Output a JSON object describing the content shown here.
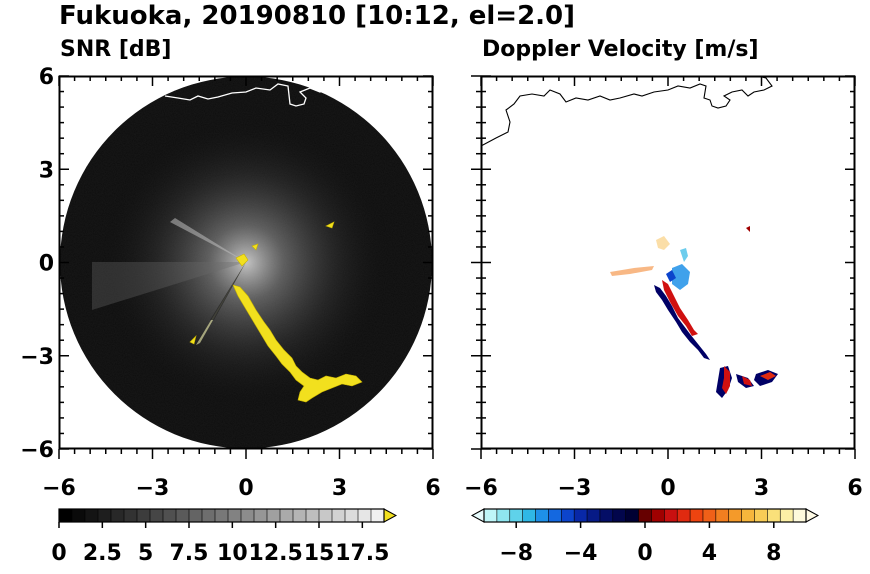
{
  "figure": {
    "title": "Fukuoka, 20190810 [10:12, el=2.0]"
  },
  "chart_data": [
    {
      "type": "heatmap",
      "title": "SNR [dB]",
      "xlabel": "",
      "ylabel": "",
      "xlim": [
        -6,
        6
      ],
      "ylim": [
        -6,
        6
      ],
      "x_ticks": [
        -6,
        -3,
        0,
        3,
        6
      ],
      "x_tick_labels": [
        "−6",
        "−3",
        "0",
        "3",
        "6"
      ],
      "y_ticks": [
        6,
        3,
        0,
        -3,
        -6
      ],
      "y_tick_labels": [
        "6",
        "3",
        "0",
        "−3",
        "−6"
      ],
      "range_ring_radius": 6,
      "background_color": "#000000",
      "echo_color": "#f2e01e",
      "colorbar": {
        "min": 0,
        "max": 18.75,
        "tick_values": [
          0,
          2.5,
          5,
          7.5,
          10,
          12.5,
          15,
          17.5
        ],
        "tick_labels": [
          "0",
          "2.5",
          "5",
          "7.5",
          "10",
          "12.5",
          "15",
          "17.5"
        ],
        "colors": [
          "#000000",
          "#0a0a0a",
          "#141414",
          "#1e1e1e",
          "#282828",
          "#323232",
          "#3c3c3c",
          "#464646",
          "#505050",
          "#5a5a5a",
          "#646464",
          "#6e6e6e",
          "#787878",
          "#828282",
          "#8c8c8c",
          "#969696",
          "#a0a0a0",
          "#aaaaaa",
          "#b4b4b4",
          "#bebebe",
          "#c8c8c8",
          "#d2d2d2",
          "#dcdcdc",
          "#e6e6e6",
          "#f0f0f0"
        ],
        "extend_color": "#f2e01e"
      }
    },
    {
      "type": "heatmap",
      "title": "Doppler Velocity [m/s]",
      "xlabel": "",
      "ylabel": "",
      "xlim": [
        -6,
        6
      ],
      "ylim": [
        -6,
        6
      ],
      "x_ticks": [
        -6,
        -3,
        0,
        3,
        6
      ],
      "x_tick_labels": [
        "−6",
        "−3",
        "0",
        "3",
        "6"
      ],
      "y_ticks": [
        6,
        3,
        0,
        -3,
        -6
      ],
      "colorbar": {
        "min": -10,
        "max": 10,
        "tick_values": [
          -8,
          -4,
          0,
          4,
          8
        ],
        "tick_labels": [
          "−8",
          "−4",
          "0",
          "4",
          "8"
        ],
        "colors": [
          "#bff6f8",
          "#8fe6f0",
          "#5fd2ea",
          "#2fb8e6",
          "#1e90e8",
          "#1468e0",
          "#0c44cc",
          "#0828a8",
          "#061a86",
          "#040e66",
          "#02064c",
          "#000033",
          "#660000",
          "#a00000",
          "#c81010",
          "#e02a10",
          "#ee4410",
          "#f06018",
          "#f27e20",
          "#f49a2a",
          "#f6b63c",
          "#f8cc56",
          "#fae07a",
          "#fcf0a6",
          "#fefadc"
        ],
        "extend_low_color": "#e6fbfc",
        "extend_high_color": "#fffbe6"
      }
    }
  ]
}
